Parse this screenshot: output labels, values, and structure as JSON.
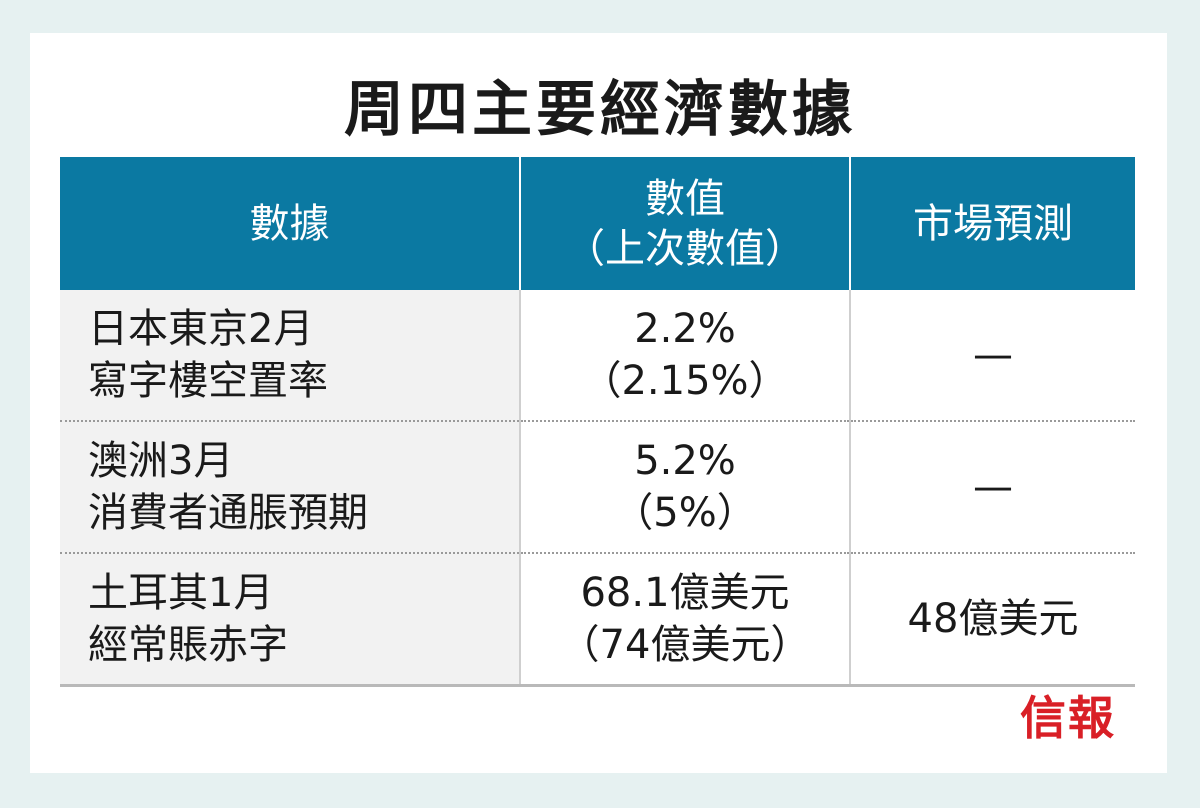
{
  "title": "周四主要經濟數據",
  "headers": {
    "col1": "數據",
    "col2_line1": "數值",
    "col2_line2": "（上次數值）",
    "col3": "市場預測"
  },
  "rows": [
    {
      "category_line1": "日本東京2月",
      "category_line2": "寫字樓空置率",
      "value": "2.2%",
      "previous": "（2.15%）",
      "forecast": "—"
    },
    {
      "category_line1": "澳洲3月",
      "category_line2": "消費者通脹預期",
      "value": "5.2%",
      "previous": "（5%）",
      "forecast": "—"
    },
    {
      "category_line1": "土耳其1月",
      "category_line2": "經常賬赤字",
      "value": "68.1億美元",
      "previous": "（74億美元）",
      "forecast": "48億美元"
    }
  ],
  "logo": "信報",
  "colors": {
    "header_bg": "#0b79a2",
    "category_bg": "#f2f2f2",
    "page_bg": "#e6f1f1",
    "logo": "#d91f26"
  }
}
